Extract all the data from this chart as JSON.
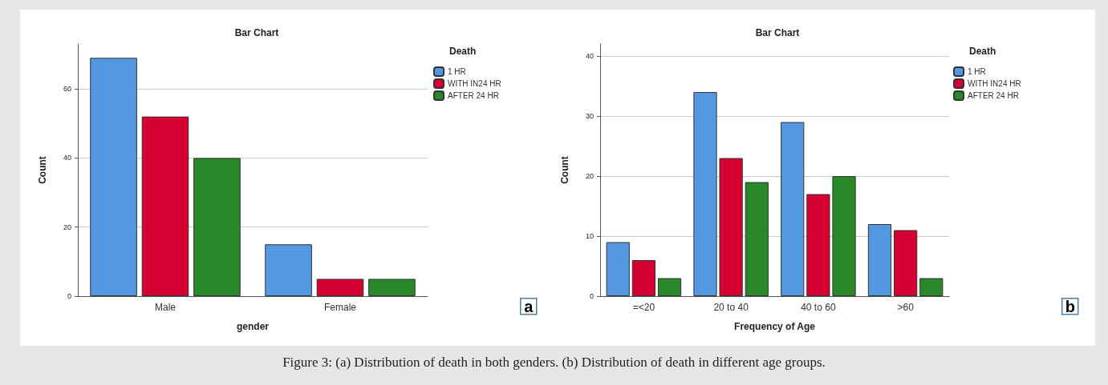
{
  "chart_data": [
    {
      "type": "bar",
      "title": "Bar Chart",
      "xlabel": "gender",
      "ylabel": "Count",
      "legend_title": "Death",
      "categories": [
        "Male",
        "Female"
      ],
      "series": [
        {
          "name": "1 HR",
          "color": "#5598e2",
          "values": [
            69,
            15
          ]
        },
        {
          "name": "WITH IN24 HR",
          "color": "#d50032",
          "values": [
            52,
            5
          ]
        },
        {
          "name": "AFTER 24 HR",
          "color": "#2a872a",
          "values": [
            40,
            5
          ]
        }
      ],
      "ylim": [
        0,
        73
      ],
      "yticks": [
        0,
        20,
        40,
        60
      ],
      "grid": "y",
      "legend": "top right",
      "annotations": [
        "a"
      ]
    },
    {
      "type": "bar",
      "title": "Bar Chart",
      "xlabel": "Frequency of Age",
      "ylabel": "Count",
      "legend_title": "Death",
      "categories": [
        "=<20",
        "20 to 40",
        "40 to 60",
        ">60"
      ],
      "series": [
        {
          "name": "1 HR",
          "color": "#5598e2",
          "values": [
            9,
            34,
            29,
            12
          ]
        },
        {
          "name": "WITH IN24 HR",
          "color": "#d50032",
          "values": [
            6,
            23,
            17,
            11
          ]
        },
        {
          "name": "AFTER 24 HR",
          "color": "#2a872a",
          "values": [
            3,
            19,
            20,
            3
          ]
        }
      ],
      "ylim": [
        0,
        42
      ],
      "yticks": [
        0,
        10,
        20,
        30,
        40
      ],
      "grid": "y",
      "legend": "top right",
      "annotations": [
        "b",
        "Figure 3: (a) Distribution of death in both genders. (b) Distribution of death in different age groups."
      ]
    }
  ]
}
